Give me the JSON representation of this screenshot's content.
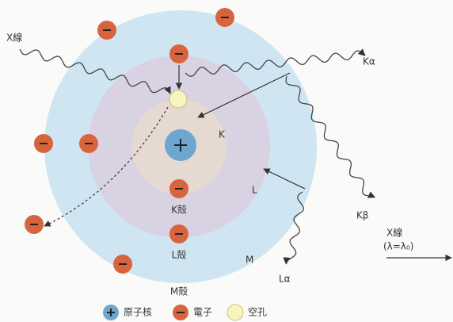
{
  "incident_ray": "X線",
  "emitted": {
    "k_alpha": "Kα",
    "k_beta": "Kβ",
    "l_alpha": "Lα"
  },
  "scattered": {
    "label": "X線",
    "formula": "(λ=λ₀)"
  },
  "shells": {
    "k": "K",
    "l": "L",
    "m": "M",
    "k_name": "K殻",
    "l_name": "L殻",
    "m_name": "M殻"
  },
  "legend": {
    "nucleus": "原子核",
    "electron": "電子",
    "hole": "空孔"
  }
}
